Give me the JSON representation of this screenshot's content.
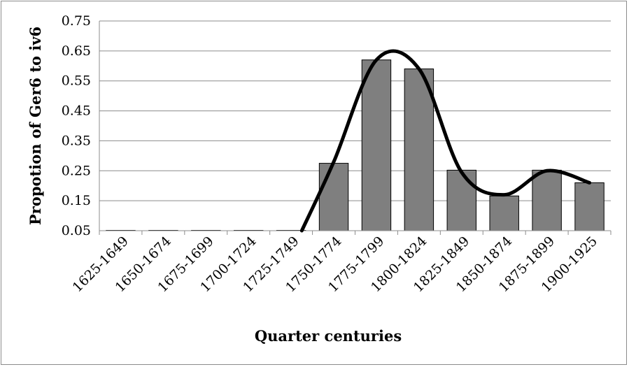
{
  "chart_data": {
    "type": "bar",
    "categories": [
      "1625-1649",
      "1650-1674",
      "1675-1699",
      "1700-1724",
      "1725-1749",
      "1750-1774",
      "1775-1799",
      "1800-1824",
      "1825-1849",
      "1850-1874",
      "1875-1899",
      "1900-1925"
    ],
    "values": [
      0.05,
      0.05,
      0.05,
      0.05,
      0.05,
      0.275,
      0.62,
      0.59,
      0.252,
      0.166,
      0.252,
      0.21
    ],
    "trend_line": [
      0.05,
      0.05,
      0.05,
      0.05,
      0.05,
      0.28,
      0.62,
      0.59,
      0.245,
      0.17,
      0.25,
      0.21
    ],
    "title": "",
    "xlabel": "Quarter centuries",
    "ylabel": "Propotion of Ger6 to iv6",
    "ylim": [
      0.05,
      0.75
    ],
    "yticks": [
      "0.05",
      "0.15",
      "0.25",
      "0.35",
      "0.45",
      "0.55",
      "0.65",
      "0.75"
    ],
    "grid": true,
    "legend": "none",
    "colors": {
      "bar": "#7f7f7f",
      "bar_edge": "#000000",
      "line": "#000000",
      "grid": "#8c8c8c"
    }
  }
}
